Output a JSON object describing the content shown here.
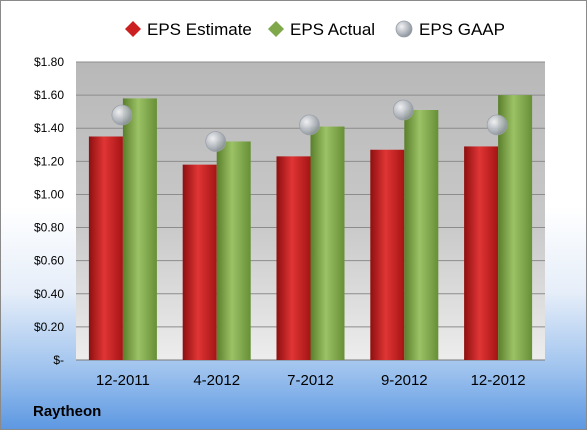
{
  "company": "Raytheon",
  "chart_data": {
    "type": "bar",
    "categories": [
      "12-2011",
      "4-2012",
      "7-2012",
      "9-2012",
      "12-2012"
    ],
    "series": [
      {
        "name": "EPS Estimate",
        "kind": "bar",
        "color": "#cc1f1f",
        "values": [
          1.35,
          1.18,
          1.23,
          1.27,
          1.29
        ]
      },
      {
        "name": "EPS Actual",
        "kind": "bar",
        "color": "#7ea84a",
        "values": [
          1.58,
          1.32,
          1.41,
          1.51,
          1.6
        ]
      },
      {
        "name": "EPS GAAP",
        "kind": "marker",
        "color": "#b8bdc4",
        "values": [
          1.48,
          1.32,
          1.42,
          1.51,
          1.42
        ]
      }
    ],
    "ylim": [
      0,
      1.8
    ],
    "yticks": [
      0,
      0.2,
      0.4,
      0.6,
      0.8,
      1.0,
      1.2,
      1.4,
      1.6,
      1.8
    ],
    "ytick_labels": [
      "$-",
      "$0.20",
      "$0.40",
      "$0.60",
      "$0.80",
      "$1.00",
      "$1.20",
      "$1.40",
      "$1.60",
      "$1.80"
    ],
    "grid": true,
    "legend_position": "top"
  }
}
